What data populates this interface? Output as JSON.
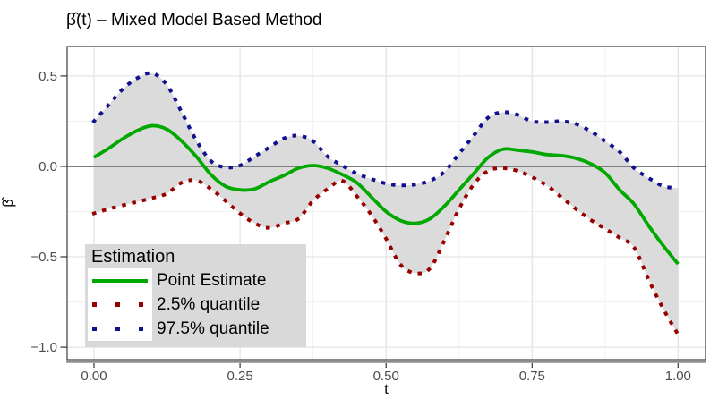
{
  "title": "β̂(t) – Mixed Model Based Method",
  "colors": {
    "background": "#FFFFFF",
    "estimate": "#00A800",
    "lower_quantile": "#980000",
    "upper_quantile": "#11118F",
    "ribbon": "#DBDBDB",
    "zero_line": "#7F7F7F",
    "grid_major": "#E4E4E4",
    "grid_minor": "#F1F1F1",
    "panel_border": "#3C3C3C",
    "axis_line": "#8F8F8F",
    "tick_mark": "#333333",
    "axis_text": "#4D4D4D",
    "legend_bg": "#D9D9D9",
    "legend_key_bg": "#FFFFFF",
    "text": "#000000"
  },
  "legend": {
    "title": "Estimation",
    "position": "inside bottom-left",
    "items": [
      {
        "label": "Point Estimate",
        "style": "solid",
        "color": "#00A800"
      },
      {
        "label": "2.5% quantile",
        "style": "dotted",
        "color": "#980000"
      },
      {
        "label": "97.5% quantile",
        "style": "dotted",
        "color": "#11118F"
      }
    ]
  },
  "chart_data": {
    "type": "line",
    "title": "β̂(t) – Mixed Model Based Method",
    "xlabel": "t",
    "ylabel": "β̂",
    "xlim": [
      -0.046,
      1.047
    ],
    "ylim": [
      -1.069,
      0.663
    ],
    "x_ticks": [
      0,
      0.25,
      0.5,
      0.75,
      1
    ],
    "x_tick_labels": [
      "0.00",
      "0.25",
      "0.50",
      "0.75",
      "1.00"
    ],
    "x_minor_ticks": [
      0.125,
      0.375,
      0.625,
      0.875
    ],
    "y_ticks": [
      0.5,
      0.0,
      -0.5,
      -1.0
    ],
    "y_tick_labels": [
      "0.5",
      "0.0",
      "−0.5",
      "−1.0"
    ],
    "y_minor_ticks": [
      0.25,
      -0.25,
      -0.75
    ],
    "grid": true,
    "zero_line": 0,
    "x": [
      0,
      0.025,
      0.05,
      0.075,
      0.1,
      0.125,
      0.15,
      0.175,
      0.2,
      0.225,
      0.25,
      0.275,
      0.3,
      0.325,
      0.35,
      0.375,
      0.4,
      0.425,
      0.45,
      0.475,
      0.5,
      0.525,
      0.55,
      0.575,
      0.6,
      0.625,
      0.65,
      0.675,
      0.7,
      0.725,
      0.75,
      0.775,
      0.8,
      0.825,
      0.85,
      0.875,
      0.9,
      0.925,
      0.95,
      0.975,
      1
    ],
    "series": [
      {
        "name": "Point Estimate",
        "style": "solid",
        "color": "#00A800",
        "width": 3.8,
        "values": [
          0.05,
          0.1,
          0.155,
          0.2,
          0.225,
          0.205,
          0.14,
          0.055,
          -0.045,
          -0.11,
          -0.13,
          -0.125,
          -0.085,
          -0.05,
          -0.01,
          0.005,
          -0.01,
          -0.045,
          -0.09,
          -0.17,
          -0.25,
          -0.3,
          -0.315,
          -0.29,
          -0.22,
          -0.13,
          -0.04,
          0.05,
          0.095,
          0.09,
          0.08,
          0.065,
          0.06,
          0.045,
          0.015,
          -0.035,
          -0.13,
          -0.21,
          -0.33,
          -0.44,
          -0.54
        ]
      },
      {
        "name": "2.5% quantile",
        "style": "dotted",
        "color": "#980000",
        "width": 4,
        "values": [
          -0.26,
          -0.235,
          -0.215,
          -0.195,
          -0.175,
          -0.15,
          -0.09,
          -0.078,
          -0.125,
          -0.19,
          -0.26,
          -0.315,
          -0.34,
          -0.315,
          -0.29,
          -0.19,
          -0.125,
          -0.08,
          -0.165,
          -0.27,
          -0.4,
          -0.545,
          -0.59,
          -0.565,
          -0.41,
          -0.235,
          -0.1,
          -0.025,
          -0.01,
          -0.025,
          -0.06,
          -0.105,
          -0.17,
          -0.235,
          -0.295,
          -0.345,
          -0.395,
          -0.45,
          -0.63,
          -0.79,
          -0.93
        ]
      },
      {
        "name": "97.5% quantile",
        "style": "dotted",
        "color": "#11118F",
        "width": 4,
        "values": [
          0.25,
          0.34,
          0.43,
          0.49,
          0.515,
          0.45,
          0.3,
          0.145,
          0.03,
          -0.005,
          0.005,
          0.055,
          0.105,
          0.155,
          0.17,
          0.14,
          0.055,
          0.005,
          -0.04,
          -0.07,
          -0.095,
          -0.105,
          -0.1,
          -0.08,
          -0.03,
          0.07,
          0.17,
          0.27,
          0.3,
          0.285,
          0.25,
          0.245,
          0.25,
          0.235,
          0.195,
          0.14,
          0.08,
          -0.01,
          -0.065,
          -0.11,
          -0.12
        ]
      }
    ],
    "ribbon": {
      "between": [
        "2.5% quantile",
        "97.5% quantile"
      ],
      "fill": "#DBDBDB"
    }
  }
}
